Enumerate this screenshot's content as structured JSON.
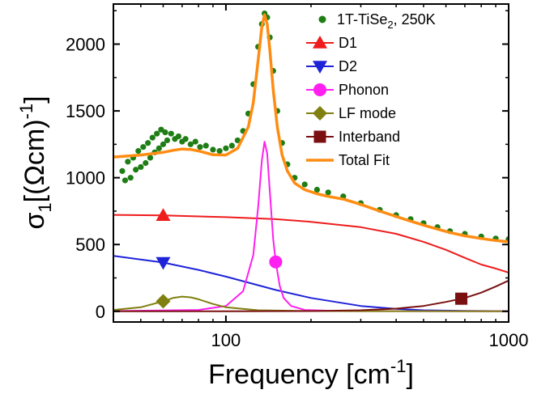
{
  "chart_data": {
    "type": "line",
    "x_scale": "log",
    "xlim": [
      40,
      1000
    ],
    "ylim": [
      -80,
      2300
    ],
    "xlabel": {
      "main": "Frequency [cm",
      "sup": "-1",
      "tail": "]"
    },
    "ylabel": {
      "sigma": "σ",
      "sub": "1",
      "mid": "[(Ωcm)",
      "sup": "-1",
      "tail": "]"
    },
    "x_ticks": [
      {
        "value": 100,
        "label": "100"
      },
      {
        "value": 1000,
        "label": "1000"
      }
    ],
    "x_minor_ticks": [
      40,
      50,
      60,
      70,
      80,
      90,
      200,
      300,
      400,
      500,
      600,
      700,
      800,
      900
    ],
    "y_ticks": [
      {
        "value": 0,
        "label": "0"
      },
      {
        "value": 500,
        "label": "500"
      },
      {
        "value": 1000,
        "label": "1000"
      },
      {
        "value": 1500,
        "label": "1500"
      },
      {
        "value": 2000,
        "label": "2000"
      }
    ],
    "y_minor_ticks": [
      250,
      750,
      1250,
      1750,
      2250
    ],
    "legend_position": "top-right",
    "data_series": {
      "name": "1T-TiSe",
      "name_sub": "2",
      "name_tail": ", 250K",
      "color": "#1e7d14",
      "marker": "circle",
      "points": [
        [
          43,
          1050
        ],
        [
          44,
          980
        ],
        [
          45,
          1120
        ],
        [
          46,
          1000
        ],
        [
          47,
          1150
        ],
        [
          48,
          1060
        ],
        [
          49,
          1200
        ],
        [
          50,
          1080
        ],
        [
          51,
          1230
        ],
        [
          52,
          1110
        ],
        [
          53,
          1260
        ],
        [
          54,
          1150
        ],
        [
          55,
          1300
        ],
        [
          56,
          1190
        ],
        [
          57,
          1330
        ],
        [
          58,
          1220
        ],
        [
          59,
          1360
        ],
        [
          60,
          1250
        ],
        [
          61,
          1340
        ],
        [
          62,
          1280
        ],
        [
          64,
          1330
        ],
        [
          66,
          1290
        ],
        [
          68,
          1310
        ],
        [
          70,
          1270
        ],
        [
          72,
          1290
        ],
        [
          75,
          1250
        ],
        [
          78,
          1270
        ],
        [
          81,
          1230
        ],
        [
          85,
          1240
        ],
        [
          90,
          1210
        ],
        [
          95,
          1200
        ],
        [
          100,
          1220
        ],
        [
          105,
          1240
        ],
        [
          110,
          1280
        ],
        [
          115,
          1350
        ],
        [
          120,
          1480
        ],
        [
          125,
          1700
        ],
        [
          130,
          1980
        ],
        [
          134,
          2150
        ],
        [
          137,
          2230
        ],
        [
          140,
          2200
        ],
        [
          143,
          2050
        ],
        [
          147,
          1800
        ],
        [
          152,
          1500
        ],
        [
          158,
          1260
        ],
        [
          165,
          1100
        ],
        [
          175,
          1000
        ],
        [
          190,
          950
        ],
        [
          210,
          910
        ],
        [
          230,
          890
        ],
        [
          260,
          860
        ],
        [
          300,
          810
        ],
        [
          350,
          760
        ],
        [
          400,
          720
        ],
        [
          450,
          690
        ],
        [
          500,
          660
        ],
        [
          560,
          630
        ],
        [
          620,
          600
        ],
        [
          700,
          580
        ],
        [
          800,
          560
        ],
        [
          900,
          545
        ],
        [
          1000,
          540
        ]
      ]
    },
    "series": [
      {
        "name": "D1",
        "color": "#ee1c1c",
        "marker": "triangle-up",
        "marker_x": 60,
        "x": [
          40,
          60,
          100,
          150,
          200,
          300,
          400,
          500,
          600,
          700,
          800,
          900,
          1000
        ],
        "values": [
          722,
          718,
          705,
          690,
          670,
          630,
          580,
          520,
          460,
          400,
          350,
          320,
          290
        ]
      },
      {
        "name": "D2",
        "color": "#1e23d8",
        "marker": "triangle-down",
        "marker_x": 60,
        "x": [
          40,
          60,
          80,
          100,
          150,
          200,
          300,
          400,
          500,
          700,
          1000
        ],
        "values": [
          415,
          365,
          310,
          260,
          160,
          100,
          40,
          18,
          8,
          3,
          1
        ]
      },
      {
        "name": "Phonon",
        "color": "#ff1ff0",
        "marker": "circle",
        "marker_x": 150,
        "x": [
          40,
          80,
          100,
          115,
          125,
          130,
          134,
          137,
          140,
          143,
          147,
          150,
          155,
          160,
          170,
          190,
          250,
          1000
        ],
        "values": [
          2,
          10,
          40,
          150,
          420,
          780,
          1130,
          1270,
          1180,
          900,
          540,
          370,
          190,
          100,
          40,
          10,
          2,
          0
        ]
      },
      {
        "name": "LF mode",
        "color": "#808010",
        "marker": "diamond",
        "marker_x": 60,
        "x": [
          40,
          50,
          60,
          65,
          70,
          75,
          80,
          90,
          100,
          130,
          180,
          300,
          1000
        ],
        "values": [
          10,
          30,
          75,
          100,
          110,
          105,
          90,
          55,
          30,
          8,
          3,
          1,
          0
        ]
      },
      {
        "name": "Interband",
        "color": "#7a1010",
        "marker": "square",
        "marker_x": 680,
        "x": [
          40,
          100,
          200,
          300,
          400,
          500,
          600,
          700,
          800,
          900,
          1000
        ],
        "values": [
          0,
          0,
          2,
          8,
          20,
          40,
          70,
          100,
          140,
          185,
          230
        ]
      },
      {
        "name": "Total Fit",
        "color": "#ff8c12",
        "marker": "line",
        "x": [
          40,
          50,
          60,
          65,
          70,
          75,
          80,
          90,
          100,
          110,
          120,
          125,
          130,
          134,
          137,
          140,
          143,
          147,
          152,
          158,
          165,
          175,
          190,
          210,
          230,
          260,
          300,
          350,
          400,
          450,
          500,
          560,
          620,
          700,
          800,
          900,
          1000
        ],
        "values": [
          1155,
          1170,
          1190,
          1205,
          1215,
          1212,
          1200,
          1172,
          1170,
          1220,
          1380,
          1560,
          1880,
          2130,
          2220,
          2150,
          1960,
          1660,
          1380,
          1170,
          1050,
          960,
          910,
          880,
          860,
          840,
          800,
          750,
          710,
          675,
          645,
          615,
          590,
          565,
          545,
          530,
          520
        ]
      }
    ]
  }
}
